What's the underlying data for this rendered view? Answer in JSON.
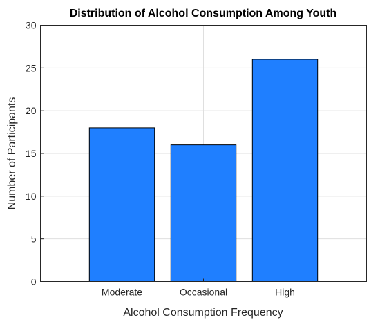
{
  "chart_data": {
    "type": "bar",
    "title": "Distribution of Alcohol Consumption Among Youth",
    "xlabel": "Alcohol Consumption Frequency",
    "ylabel": "Number of Participants",
    "categories": [
      "Moderate",
      "Occasional",
      "High"
    ],
    "values": [
      18,
      16,
      26
    ],
    "ylim": [
      0,
      30
    ],
    "yticks": [
      0,
      5,
      10,
      15,
      20,
      25,
      30
    ],
    "grid": true,
    "bar_color": "#1f7fff",
    "legend": "none"
  }
}
